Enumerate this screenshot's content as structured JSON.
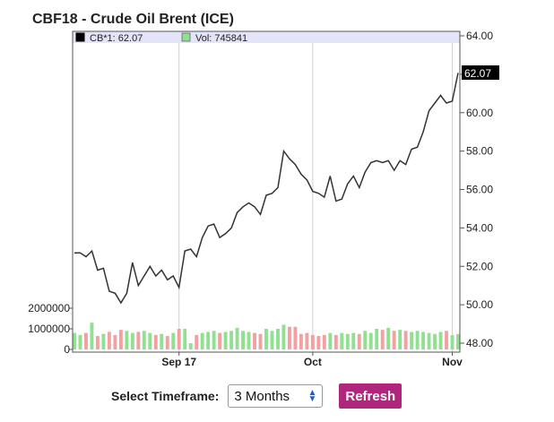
{
  "header": {
    "title": "CBF18 - Crude Oil Brent (ICE)"
  },
  "legend": {
    "price_label": "CB*1: 62.07",
    "volume_label": "Vol: 745841",
    "price_color": "#000000",
    "volume_color": "#90e090"
  },
  "last_price_tag": "62.07",
  "controls": {
    "timeframe_label": "Select Timeframe:",
    "timeframe_value": "3 Months",
    "refresh_label": "Refresh",
    "refresh_color": "#b0267d"
  },
  "chart_data": {
    "type": "line",
    "price_axis": {
      "ticks": [
        "64.00",
        "62.00",
        "60.00",
        "58.00",
        "56.00",
        "54.00",
        "52.00",
        "50.00",
        "48.00"
      ],
      "ylim": [
        48,
        64
      ],
      "position": "right"
    },
    "volume_axis": {
      "ticks": [
        "2000000",
        "1000000",
        "0"
      ],
      "ylim": [
        0,
        2000000
      ],
      "position": "left"
    },
    "x_ticks": [
      "Sep 17",
      "Oct",
      "Nov"
    ],
    "grid": true,
    "legend_position": "top-left",
    "price_series": [
      52.7,
      52.7,
      52.5,
      52.8,
      51.8,
      51.9,
      50.7,
      50.6,
      50.1,
      50.6,
      52.2,
      51.0,
      51.5,
      52.0,
      51.5,
      51.8,
      51.3,
      51.5,
      50.9,
      52.8,
      52.9,
      52.5,
      53.5,
      54.1,
      54.2,
      53.5,
      53.7,
      54.0,
      54.8,
      55.1,
      55.3,
      55.1,
      54.7,
      55.7,
      55.8,
      56.1,
      58.0,
      57.6,
      57.3,
      56.8,
      56.5,
      55.9,
      55.8,
      55.6,
      56.7,
      55.4,
      55.5,
      56.3,
      56.7,
      56.1,
      56.9,
      57.4,
      57.5,
      57.4,
      57.5,
      57.0,
      57.5,
      57.3,
      58.1,
      58.2,
      59.0,
      60.1,
      60.5,
      60.9,
      60.5,
      60.6,
      62.07
    ],
    "volume_series": [
      800000,
      700000,
      800000,
      1300000,
      650000,
      750000,
      850000,
      700000,
      950000,
      900000,
      800000,
      850000,
      900000,
      800000,
      700000,
      750000,
      650000,
      800000,
      1000000,
      1000000,
      300000,
      700000,
      800000,
      850000,
      900000,
      800000,
      850000,
      900000,
      1050000,
      900000,
      850000,
      800000,
      750000,
      1000000,
      900000,
      1000000,
      1200000,
      1100000,
      1100000,
      750000,
      800000,
      700000,
      650000,
      700000,
      800000,
      700000,
      800000,
      750000,
      800000,
      750000,
      900000,
      800000,
      1000000,
      950000,
      1050000,
      900000,
      950000,
      900000,
      850000,
      900000,
      850000,
      800000,
      750000,
      850000,
      900000,
      700000,
      750000
    ],
    "volume_up_color": "#90e090",
    "volume_down_color": "#f4a0a0"
  }
}
